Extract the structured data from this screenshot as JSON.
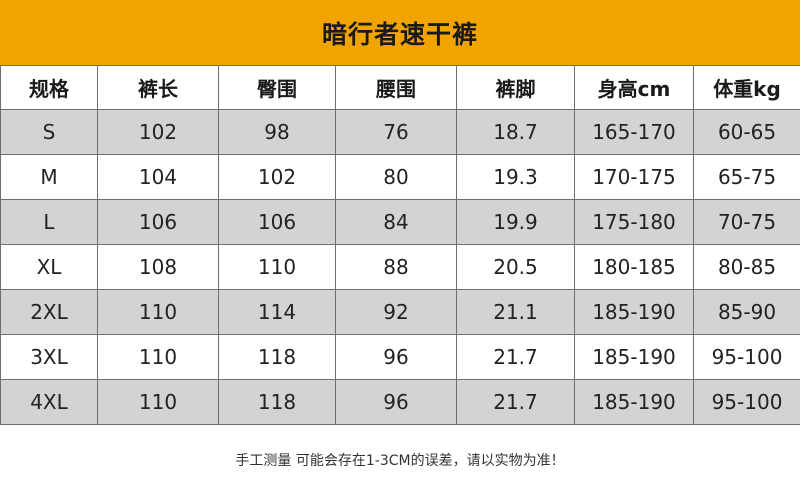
{
  "title": "暗行者速干裤",
  "table": {
    "headers": [
      "规格",
      "裤长",
      "臀围",
      "腰围",
      "裤脚",
      "身高cm",
      "体重kg"
    ],
    "rows": [
      [
        "S",
        "102",
        "98",
        "76",
        "18.7",
        "165-170",
        "60-65"
      ],
      [
        "M",
        "104",
        "102",
        "80",
        "19.3",
        "170-175",
        "65-75"
      ],
      [
        "L",
        "106",
        "106",
        "84",
        "19.9",
        "175-180",
        "70-75"
      ],
      [
        "XL",
        "108",
        "110",
        "88",
        "20.5",
        "180-185",
        "80-85"
      ],
      [
        "2XL",
        "110",
        "114",
        "92",
        "21.1",
        "185-190",
        "85-90"
      ],
      [
        "3XL",
        "110",
        "118",
        "96",
        "21.7",
        "185-190",
        "95-100"
      ],
      [
        "4XL",
        "110",
        "118",
        "96",
        "21.7",
        "185-190",
        "95-100"
      ]
    ]
  },
  "footnote": "手工测量 可能会存在1-3CM的误差，请以实物为准！",
  "colors": {
    "title_bar": "#f1a400",
    "row_shade": "#d3d3d3",
    "border": "#6e6e6e"
  }
}
